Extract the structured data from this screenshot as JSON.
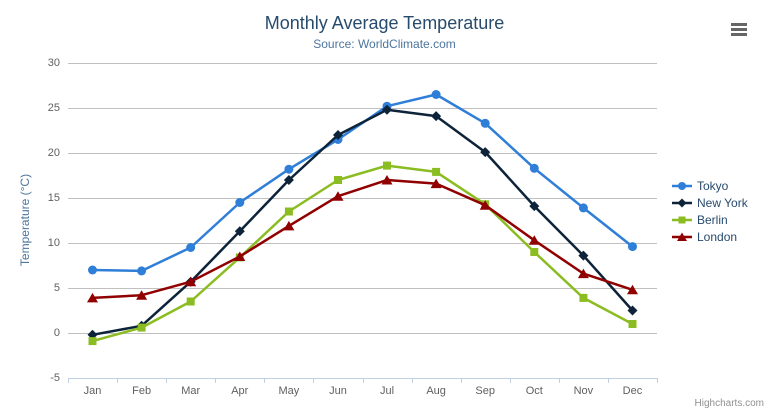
{
  "header": {
    "title": "Monthly Average Temperature",
    "subtitle": "Source: WorldClimate.com"
  },
  "menu": {
    "icon": "hamburger-menu-icon",
    "color": "#666666"
  },
  "credits": {
    "label": "Highcharts.com"
  },
  "colors": {
    "title": "#274b6d",
    "subtitle": "#4d759e",
    "axis_label": "#606060",
    "axis_title": "#4d759e",
    "grid_line": "#c0c0c0",
    "axis_line": "#c0d0e0",
    "legend_text": "#274b6d",
    "credits": "#909090"
  },
  "chart_data": {
    "type": "line",
    "title": "Monthly Average Temperature",
    "subtitle": "Source: WorldClimate.com",
    "xlabel": "",
    "ylabel": "Temperature (°C)",
    "categories": [
      "Jan",
      "Feb",
      "Mar",
      "Apr",
      "May",
      "Jun",
      "Jul",
      "Aug",
      "Sep",
      "Oct",
      "Nov",
      "Dec"
    ],
    "yticks": [
      -5,
      0,
      5,
      10,
      15,
      20,
      25,
      30
    ],
    "ylim": [
      -5,
      30
    ],
    "grid": true,
    "legend_position": "right-middle-vertical",
    "series": [
      {
        "name": "Tokyo",
        "color": "#2f7ed8",
        "marker": "circle",
        "values": [
          7.0,
          6.9,
          9.5,
          14.5,
          18.2,
          21.5,
          25.2,
          26.5,
          23.3,
          18.3,
          13.9,
          9.6
        ]
      },
      {
        "name": "New York",
        "color": "#0d233a",
        "marker": "diamond",
        "values": [
          -0.2,
          0.8,
          5.7,
          11.3,
          17.0,
          22.0,
          24.8,
          24.1,
          20.1,
          14.1,
          8.6,
          2.5
        ]
      },
      {
        "name": "Berlin",
        "color": "#8bbc21",
        "marker": "square",
        "values": [
          -0.9,
          0.6,
          3.5,
          8.4,
          13.5,
          17.0,
          18.6,
          17.9,
          14.3,
          9.0,
          3.9,
          1.0
        ]
      },
      {
        "name": "London",
        "color": "#910000",
        "marker": "triangle",
        "values": [
          3.9,
          4.2,
          5.7,
          8.5,
          11.9,
          15.2,
          17.0,
          16.6,
          14.2,
          10.3,
          6.6,
          4.8
        ]
      }
    ]
  }
}
